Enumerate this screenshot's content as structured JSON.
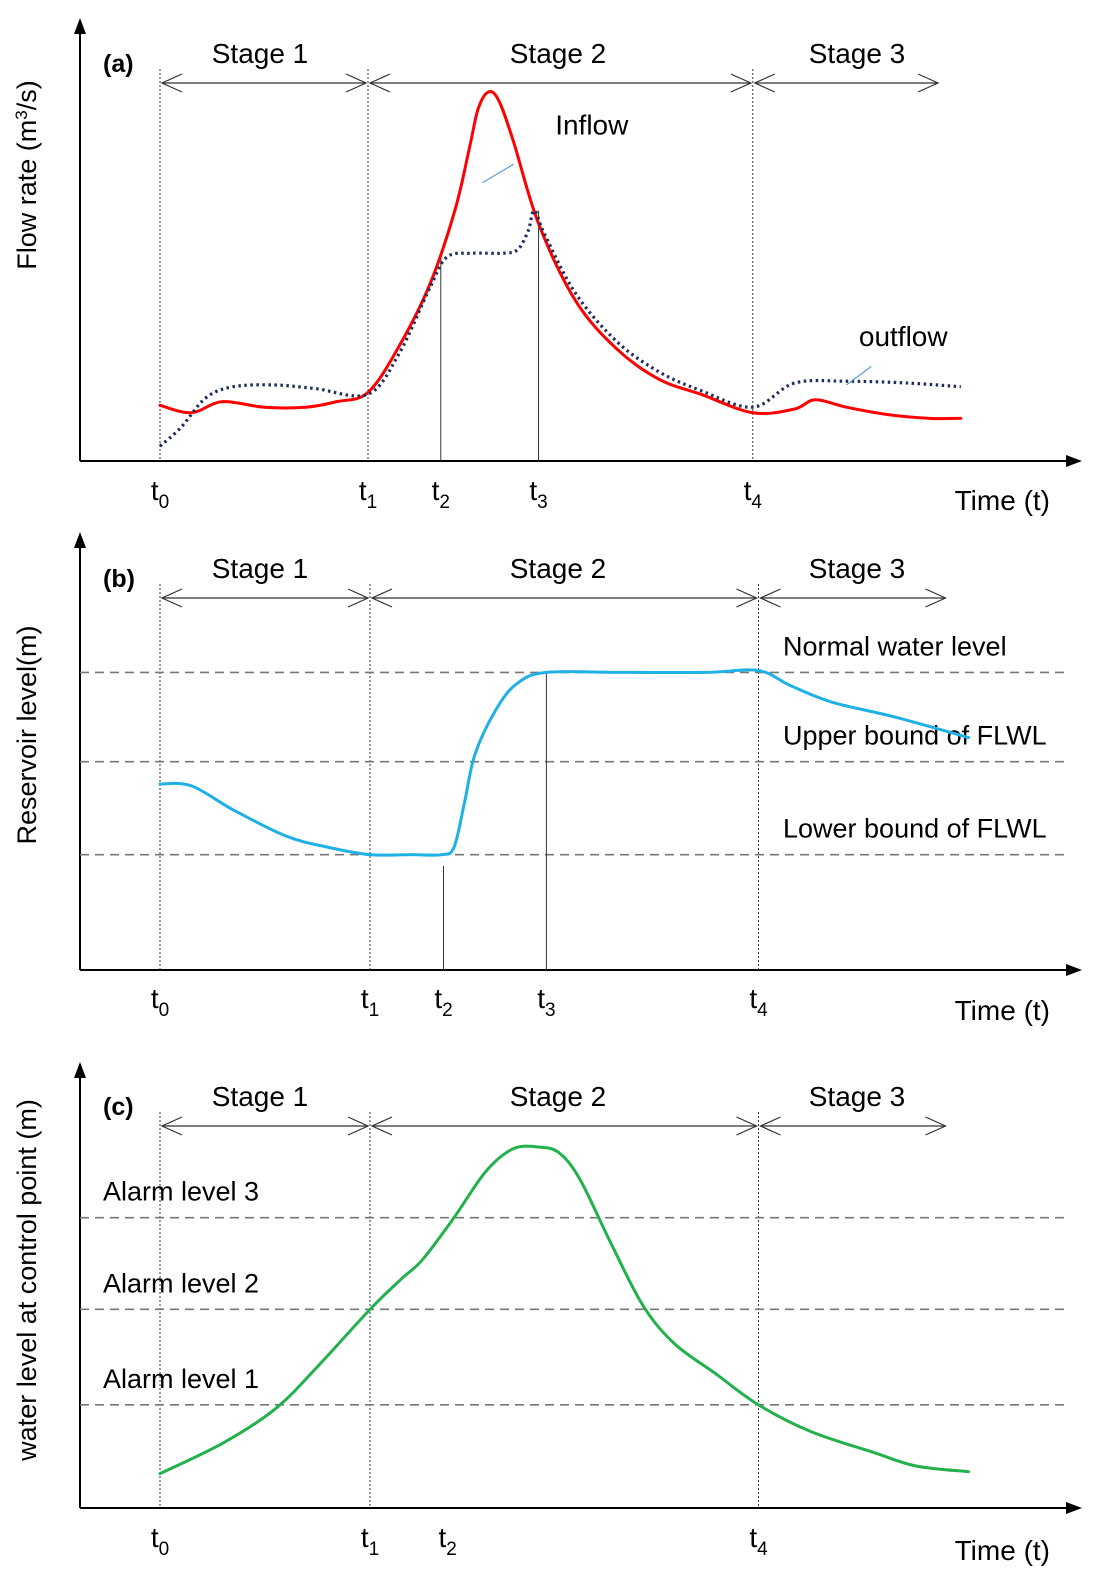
{
  "chart_data": [
    {
      "type": "line",
      "panel_label": "(a)",
      "ylabel": "Flow rate (m³/s)",
      "ylabel_main": "Flow rate (m",
      "ylabel_sup": "3",
      "ylabel_tail": "/s)",
      "xlabel": "Time (t)",
      "stages": [
        "Stage 1",
        "Stage 2",
        "Stage 3"
      ],
      "ticks": [
        {
          "base": "t",
          "sub": "0",
          "x": 0
        },
        {
          "base": "t",
          "sub": "1",
          "x": 1
        },
        {
          "base": "t",
          "sub": "2",
          "x": 1.35
        },
        {
          "base": "t",
          "sub": "3",
          "x": 1.82
        },
        {
          "base": "t",
          "sub": "4",
          "x": 2.85
        }
      ],
      "stage_boundaries": [
        0,
        1,
        2.85
      ],
      "stage_end": 3.75,
      "guide_lines": [
        {
          "x": 1.35,
          "y": 0.55
        },
        {
          "x": 1.82,
          "y": 0.675
        }
      ],
      "xlim": [
        -0.37,
        4.4
      ],
      "ylim": [
        0,
        1
      ],
      "series": [
        {
          "name": "Inflow",
          "color": "#ff0000",
          "style": "solid",
          "label_at": [
            1.9,
            0.88
          ],
          "leader": [
            [
              1.55,
              0.75
            ],
            [
              1.7,
              0.8
            ]
          ],
          "points": [
            [
              0,
              0.15
            ],
            [
              0.15,
              0.13
            ],
            [
              0.3,
              0.16
            ],
            [
              0.5,
              0.145
            ],
            [
              0.7,
              0.145
            ],
            [
              0.85,
              0.16
            ],
            [
              1.0,
              0.185
            ],
            [
              1.15,
              0.31
            ],
            [
              1.3,
              0.48
            ],
            [
              1.42,
              0.68
            ],
            [
              1.49,
              0.85
            ],
            [
              1.53,
              0.95
            ],
            [
              1.58,
              0.995
            ],
            [
              1.63,
              0.97
            ],
            [
              1.7,
              0.86
            ],
            [
              1.82,
              0.64
            ],
            [
              2.0,
              0.43
            ],
            [
              2.2,
              0.3
            ],
            [
              2.4,
              0.22
            ],
            [
              2.6,
              0.18
            ],
            [
              2.85,
              0.13
            ],
            [
              3.05,
              0.14
            ],
            [
              3.15,
              0.165
            ],
            [
              3.3,
              0.145
            ],
            [
              3.5,
              0.125
            ],
            [
              3.7,
              0.115
            ],
            [
              3.85,
              0.115
            ]
          ]
        },
        {
          "name": "outflow",
          "color": "#1f2e5a",
          "style": "dotted",
          "label_at": [
            3.36,
            0.31
          ],
          "leader": [
            [
              3.3,
              0.205
            ],
            [
              3.42,
              0.255
            ]
          ],
          "points": [
            [
              0,
              0.04
            ],
            [
              0.1,
              0.09
            ],
            [
              0.22,
              0.17
            ],
            [
              0.35,
              0.2
            ],
            [
              0.55,
              0.205
            ],
            [
              0.75,
              0.195
            ],
            [
              1.0,
              0.18
            ],
            [
              1.15,
              0.29
            ],
            [
              1.3,
              0.47
            ],
            [
              1.38,
              0.55
            ],
            [
              1.5,
              0.56
            ],
            [
              1.65,
              0.56
            ],
            [
              1.72,
              0.57
            ],
            [
              1.77,
              0.62
            ],
            [
              1.8,
              0.675
            ],
            [
              1.85,
              0.61
            ],
            [
              2.0,
              0.45
            ],
            [
              2.2,
              0.32
            ],
            [
              2.4,
              0.24
            ],
            [
              2.6,
              0.19
            ],
            [
              2.85,
              0.145
            ],
            [
              3.05,
              0.21
            ],
            [
              3.3,
              0.215
            ],
            [
              3.6,
              0.21
            ],
            [
              3.85,
              0.2
            ]
          ]
        }
      ]
    },
    {
      "type": "line",
      "panel_label": "(b)",
      "ylabel": "Reservoir level(m)",
      "xlabel": "Time (t)",
      "stages": [
        "Stage 1",
        "Stage 2",
        "Stage 3"
      ],
      "ticks": [
        {
          "base": "t",
          "sub": "0",
          "x": 0
        },
        {
          "base": "t",
          "sub": "1",
          "x": 1
        },
        {
          "base": "t",
          "sub": "2",
          "x": 1.35
        },
        {
          "base": "t",
          "sub": "3",
          "x": 1.84
        },
        {
          "base": "t",
          "sub": "4",
          "x": 2.85
        }
      ],
      "stage_boundaries": [
        0,
        1,
        2.85
      ],
      "stage_end": 3.75,
      "guide_lines": [
        {
          "x": 1.35,
          "y": 0.28
        },
        {
          "x": 1.84,
          "y": 0.8
        }
      ],
      "ref_lines": [
        {
          "label": "Normal water level",
          "y": 0.8
        },
        {
          "label": "Upper bound of FLWL",
          "y": 0.56
        },
        {
          "label": "Lower bound of FLWL",
          "y": 0.31
        }
      ],
      "xlim": [
        -0.37,
        4.4
      ],
      "ylim": [
        0,
        1
      ],
      "series": [
        {
          "color": "#1fb0e6",
          "style": "solid",
          "points": [
            [
              0,
              0.5
            ],
            [
              0.15,
              0.495
            ],
            [
              0.35,
              0.43
            ],
            [
              0.6,
              0.36
            ],
            [
              0.8,
              0.33
            ],
            [
              1.0,
              0.31
            ],
            [
              1.2,
              0.31
            ],
            [
              1.34,
              0.31
            ],
            [
              1.4,
              0.33
            ],
            [
              1.45,
              0.45
            ],
            [
              1.5,
              0.58
            ],
            [
              1.6,
              0.7
            ],
            [
              1.7,
              0.77
            ],
            [
              1.84,
              0.8
            ],
            [
              2.2,
              0.8
            ],
            [
              2.6,
              0.8
            ],
            [
              2.85,
              0.805
            ],
            [
              3.0,
              0.765
            ],
            [
              3.2,
              0.72
            ],
            [
              3.5,
              0.68
            ],
            [
              3.85,
              0.625
            ]
          ]
        }
      ]
    },
    {
      "type": "line",
      "panel_label": "(c)",
      "ylabel": "water level at control point (m)",
      "xlabel": "Time (t)",
      "stages": [
        "Stage 1",
        "Stage 2",
        "Stage 3"
      ],
      "ticks": [
        {
          "base": "t",
          "sub": "0",
          "x": 0
        },
        {
          "base": "t",
          "sub": "1",
          "x": 1
        },
        {
          "base": "t",
          "sub": "2",
          "x": 1.37
        },
        {
          "base": "t",
          "sub": "4",
          "x": 2.85
        }
      ],
      "stage_boundaries": [
        0,
        1,
        2.85
      ],
      "stage_end": 3.75,
      "guide_lines": [],
      "ref_lines": [
        {
          "label": "Alarm level 3",
          "y": 0.76
        },
        {
          "label": "Alarm level 2",
          "y": 0.52
        },
        {
          "label": "Alarm level 1",
          "y": 0.27
        }
      ],
      "xlim": [
        -0.37,
        4.4
      ],
      "ylim": [
        0,
        1
      ],
      "series": [
        {
          "color": "#22b14c",
          "style": "solid",
          "points": [
            [
              0,
              0.09
            ],
            [
              0.3,
              0.17
            ],
            [
              0.55,
              0.26
            ],
            [
              0.75,
              0.37
            ],
            [
              1.0,
              0.52
            ],
            [
              1.15,
              0.6
            ],
            [
              1.25,
              0.65
            ],
            [
              1.4,
              0.76
            ],
            [
              1.55,
              0.88
            ],
            [
              1.68,
              0.94
            ],
            [
              1.8,
              0.945
            ],
            [
              1.9,
              0.93
            ],
            [
              2.0,
              0.86
            ],
            [
              2.15,
              0.69
            ],
            [
              2.3,
              0.53
            ],
            [
              2.45,
              0.43
            ],
            [
              2.65,
              0.35
            ],
            [
              2.85,
              0.27
            ],
            [
              3.1,
              0.2
            ],
            [
              3.4,
              0.145
            ],
            [
              3.6,
              0.11
            ],
            [
              3.85,
              0.095
            ]
          ]
        }
      ]
    }
  ]
}
